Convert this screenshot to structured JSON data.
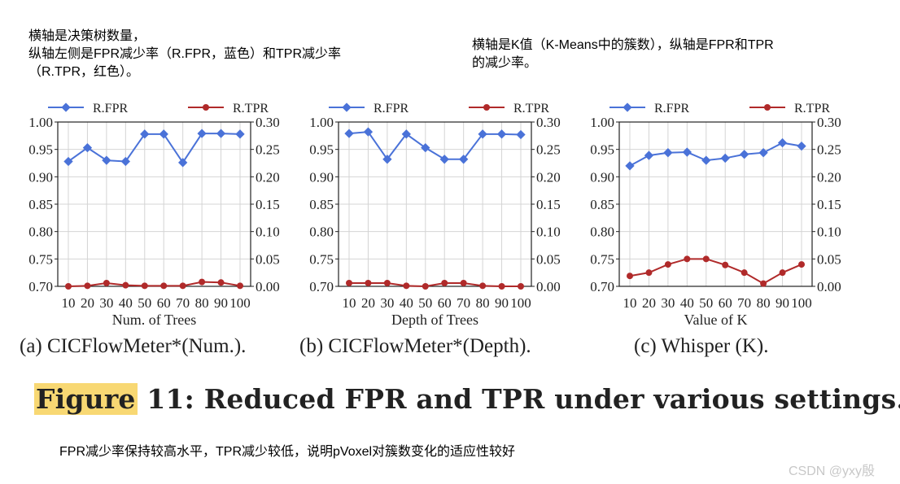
{
  "notes": {
    "left": "横轴是决策树数量，\n纵轴左侧是FPR减少率（R.FPR，蓝色）和TPR减少率\n（R.TPR，红色）。",
    "right": "横轴是K值（K-Means中的簇数），纵轴是FPR和TPR\n的减少率。"
  },
  "figure": {
    "label": "Figure",
    "title": " 11: Reduced FPR and TPR under various settings."
  },
  "footnote": "FPR减少率保持较高水平，TPR减少较低，说明pVoxel对簇数变化的适应性较好",
  "watermark": "CSDN @yxy殷",
  "colors": {
    "fpr": "#4a72d8",
    "tpr": "#b02a2a",
    "grid": "#d4d4d4"
  },
  "chart_data": [
    {
      "type": "line",
      "caption": "(a)  CICFlowMeter*(Num.).",
      "xlabel": "Num. of Trees",
      "categories": [
        "10",
        "20",
        "30",
        "40",
        "50",
        "60",
        "70",
        "80",
        "90",
        "100"
      ],
      "left_axis": {
        "ylim": [
          0.7,
          1.0
        ],
        "ticks": [
          "0.70",
          "0.75",
          "0.80",
          "0.85",
          "0.90",
          "0.95",
          "1.00"
        ]
      },
      "right_axis": {
        "ylim": [
          0.0,
          0.3
        ],
        "ticks": [
          "0.00",
          "0.05",
          "0.10",
          "0.15",
          "0.20",
          "0.25",
          "0.30"
        ]
      },
      "series": [
        {
          "name": "R.FPR",
          "axis": "left",
          "values": [
            0.928,
            0.953,
            0.93,
            0.928,
            0.978,
            0.978,
            0.926,
            0.979,
            0.979,
            0.978
          ]
        },
        {
          "name": "R.TPR",
          "axis": "right",
          "values": [
            0.0,
            0.001,
            0.006,
            0.002,
            0.001,
            0.001,
            0.001,
            0.008,
            0.007,
            0.001
          ]
        }
      ]
    },
    {
      "type": "line",
      "caption": "(b)  CICFlowMeter*(Depth).",
      "xlabel": "Depth of Trees",
      "categories": [
        "10",
        "20",
        "30",
        "40",
        "50",
        "60",
        "70",
        "80",
        "90",
        "100"
      ],
      "left_axis": {
        "ylim": [
          0.7,
          1.0
        ],
        "ticks": [
          "0.70",
          "0.75",
          "0.80",
          "0.85",
          "0.90",
          "0.95",
          "1.00"
        ]
      },
      "right_axis": {
        "ylim": [
          0.0,
          0.3
        ],
        "ticks": [
          "0.00",
          "0.05",
          "0.10",
          "0.15",
          "0.20",
          "0.25",
          "0.30"
        ]
      },
      "series": [
        {
          "name": "R.FPR",
          "axis": "left",
          "values": [
            0.979,
            0.982,
            0.932,
            0.978,
            0.953,
            0.932,
            0.932,
            0.978,
            0.978,
            0.977
          ]
        },
        {
          "name": "R.TPR",
          "axis": "right",
          "values": [
            0.006,
            0.006,
            0.006,
            0.001,
            0.0,
            0.006,
            0.006,
            0.001,
            0.0,
            0.0
          ]
        }
      ]
    },
    {
      "type": "line",
      "caption": "(c)  Whisper (K).",
      "xlabel": "Value of K",
      "categories": [
        "10",
        "20",
        "30",
        "40",
        "50",
        "60",
        "70",
        "80",
        "90",
        "100"
      ],
      "left_axis": {
        "ylim": [
          0.7,
          1.0
        ],
        "ticks": [
          "0.70",
          "0.75",
          "0.80",
          "0.85",
          "0.90",
          "0.95",
          "1.00"
        ]
      },
      "right_axis": {
        "ylim": [
          0.0,
          0.3
        ],
        "ticks": [
          "0.00",
          "0.05",
          "0.10",
          "0.15",
          "0.20",
          "0.25",
          "0.30"
        ]
      },
      "series": [
        {
          "name": "R.FPR",
          "axis": "left",
          "values": [
            0.92,
            0.939,
            0.944,
            0.945,
            0.93,
            0.934,
            0.941,
            0.944,
            0.962,
            0.956
          ]
        },
        {
          "name": "R.TPR",
          "axis": "right",
          "values": [
            0.019,
            0.025,
            0.04,
            0.05,
            0.05,
            0.039,
            0.025,
            0.005,
            0.025,
            0.04
          ]
        }
      ]
    }
  ]
}
